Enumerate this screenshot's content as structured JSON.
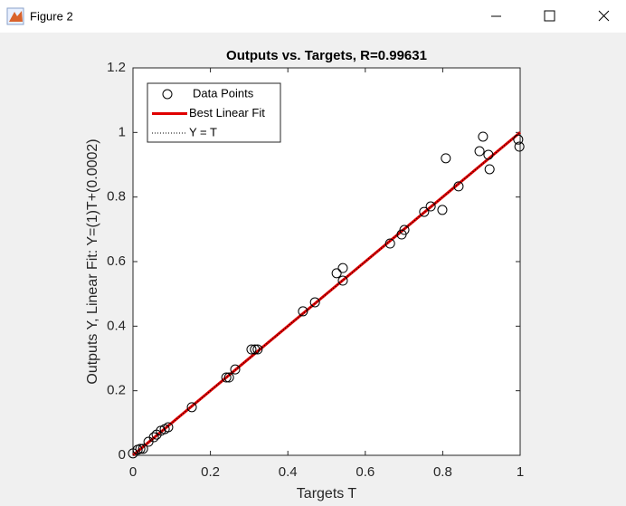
{
  "window": {
    "title": "Figure 2"
  },
  "chart_data": {
    "type": "scatter",
    "title": "Outputs vs. Targets, R=0.99631",
    "x_label": "Targets T",
    "y_label": "Outputs Y,  Linear Fit: Y=(1)T+(0.0002)",
    "xlim": [
      0,
      1
    ],
    "ylim": [
      0,
      1.2
    ],
    "xticks": [
      0,
      0.2,
      0.4,
      0.6,
      0.8,
      1
    ],
    "yticks": [
      0,
      0.2,
      0.4,
      0.6,
      0.8,
      1,
      1.2
    ],
    "legend": "upper left",
    "series": [
      {
        "name": "Data Points",
        "color": "#000000",
        "kind": "markers",
        "x": [
          0.0,
          0.012,
          0.019,
          0.026,
          0.04,
          0.054,
          0.061,
          0.072,
          0.082,
          0.091,
          0.152,
          0.241,
          0.248,
          0.264,
          0.306,
          0.315,
          0.322,
          0.439,
          0.47,
          0.526,
          0.542,
          0.542,
          0.664,
          0.694,
          0.701,
          0.752,
          0.769,
          0.799,
          0.808,
          0.841,
          0.895,
          0.904,
          0.918,
          0.921,
          0.995,
          0.998
        ],
        "values": [
          0.006,
          0.017,
          0.02,
          0.02,
          0.042,
          0.056,
          0.064,
          0.076,
          0.081,
          0.087,
          0.149,
          0.241,
          0.241,
          0.266,
          0.328,
          0.328,
          0.328,
          0.446,
          0.474,
          0.564,
          0.541,
          0.58,
          0.656,
          0.684,
          0.698,
          0.754,
          0.771,
          0.76,
          0.92,
          0.833,
          0.942,
          0.987,
          0.931,
          0.886,
          0.978,
          0.956
        ]
      },
      {
        "name": "Best Linear Fit",
        "color": "#e00000",
        "kind": "line",
        "x": [
          0,
          1
        ],
        "values": [
          0.0002,
          1.0002
        ]
      },
      {
        "name": "Y = T",
        "color": "#000000",
        "kind": "dotted",
        "x": [
          0,
          1
        ],
        "values": [
          0,
          1
        ]
      }
    ]
  }
}
